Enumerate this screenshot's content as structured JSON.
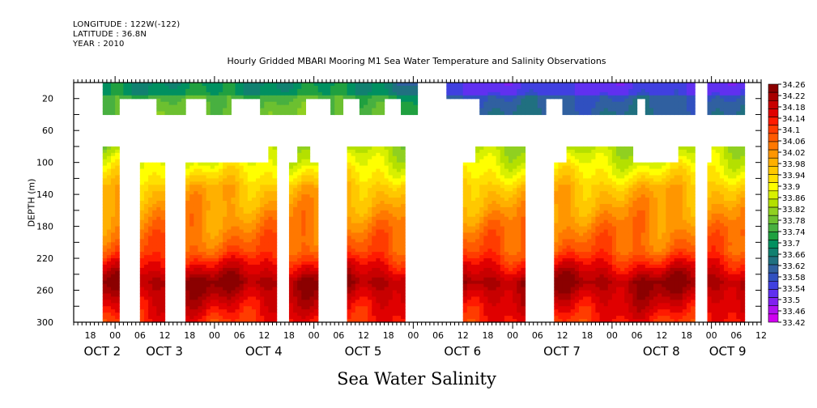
{
  "header": {
    "longitude": "LONGITUDE : 122W(-122)",
    "latitude": "LATITUDE : 36.8N",
    "year": "YEAR : 2010"
  },
  "chart_data": {
    "type": "heatmap",
    "title": "Hourly Gridded MBARI Mooring M1 Sea Water Temperature and Salinity Observations",
    "xlabel": "Sea Water Salinity",
    "ylabel": "DEPTH (m)",
    "x_range_hours": [
      0,
      162
    ],
    "x_start": "OCT 1 14:00",
    "ylim": [
      300,
      0
    ],
    "y_ticks": [
      20,
      60,
      100,
      140,
      180,
      220,
      260,
      300
    ],
    "x_ticks": [
      {
        "hour": 4,
        "label": "18"
      },
      {
        "hour": 10,
        "label": "00"
      },
      {
        "hour": 16,
        "label": "06"
      },
      {
        "hour": 22,
        "label": "12"
      },
      {
        "hour": 28,
        "label": "18"
      },
      {
        "hour": 34,
        "label": "00"
      },
      {
        "hour": 40,
        "label": "06"
      },
      {
        "hour": 46,
        "label": "12"
      },
      {
        "hour": 52,
        "label": "18"
      },
      {
        "hour": 58,
        "label": "00"
      },
      {
        "hour": 64,
        "label": "06"
      },
      {
        "hour": 70,
        "label": "12"
      },
      {
        "hour": 76,
        "label": "18"
      },
      {
        "hour": 82,
        "label": "00"
      },
      {
        "hour": 88,
        "label": "06"
      },
      {
        "hour": 94,
        "label": "12"
      },
      {
        "hour": 100,
        "label": "18"
      },
      {
        "hour": 106,
        "label": "00"
      },
      {
        "hour": 112,
        "label": "06"
      },
      {
        "hour": 118,
        "label": "12"
      },
      {
        "hour": 124,
        "label": "18"
      },
      {
        "hour": 130,
        "label": "00"
      },
      {
        "hour": 136,
        "label": "06"
      },
      {
        "hour": 142,
        "label": "12"
      },
      {
        "hour": 148,
        "label": "18"
      },
      {
        "hour": 154,
        "label": "00"
      },
      {
        "hour": 160,
        "label": "06"
      },
      {
        "hour": 166,
        "label": "12"
      }
    ],
    "day_labels": [
      {
        "hour": 4,
        "label": "OCT  2"
      },
      {
        "hour": 19,
        "label": "OCT  3"
      },
      {
        "hour": 43,
        "label": "OCT  4"
      },
      {
        "hour": 67,
        "label": "OCT  5"
      },
      {
        "hour": 91,
        "label": "OCT  6"
      },
      {
        "hour": 115,
        "label": "OCT  7"
      },
      {
        "hour": 139,
        "label": "OCT  8"
      },
      {
        "hour": 155,
        "label": "OCT  9"
      }
    ],
    "colorbar": {
      "levels": [
        34.26,
        34.22,
        34.18,
        34.14,
        34.1,
        34.06,
        34.02,
        33.98,
        33.94,
        33.9,
        33.86,
        33.82,
        33.78,
        33.74,
        33.7,
        33.66,
        33.62,
        33.58,
        33.54,
        33.5,
        33.46,
        33.42
      ],
      "colors": [
        "#8b0000",
        "#a80000",
        "#c80000",
        "#e00000",
        "#ff1a00",
        "#ff3c00",
        "#ff5a00",
        "#ff7800",
        "#ff9600",
        "#ffb000",
        "#ffc800",
        "#ffe000",
        "#ffff00",
        "#d8f000",
        "#b4e000",
        "#90d020",
        "#6cc030",
        "#48b040",
        "#20a040",
        "#009060",
        "#108070",
        "#207080",
        "#3060a0",
        "#3050c0",
        "#4040e0",
        "#6030f0",
        "#8020f0",
        "#b010f0",
        "#d000f0"
      ]
    },
    "surface_segments_hours": [
      {
        "start": 7,
        "end": 83,
        "depth_bottom": 40,
        "notches": [
          [
            11,
            20
          ],
          [
            27,
            32
          ],
          [
            38,
            45
          ],
          [
            56,
            62
          ],
          [
            65,
            69
          ],
          [
            75,
            79
          ]
        ]
      },
      {
        "start": 90,
        "end": 150,
        "depth_bottom": 40,
        "notches": [
          [
            90,
            98
          ],
          [
            114,
            118
          ],
          [
            136,
            138
          ]
        ]
      },
      {
        "start": 153,
        "end": 162,
        "depth_bottom": 40,
        "notches": []
      }
    ],
    "deep_segments_hours": [
      {
        "start": 7,
        "end": 11,
        "depth_top": 80
      },
      {
        "start": 16,
        "end": 22,
        "depth_top": 100
      },
      {
        "start": 27,
        "end": 49,
        "depth_top": 100,
        "step": {
          "start": 47,
          "end": 49,
          "depth_top": 80
        }
      },
      {
        "start": 52,
        "end": 59,
        "depth_top": 100,
        "step": {
          "start": 54,
          "end": 57,
          "depth_top": 80
        }
      },
      {
        "start": 66,
        "end": 80,
        "depth_top": 80
      },
      {
        "start": 94,
        "end": 109,
        "depth_top": 100,
        "step": {
          "start": 97,
          "end": 109,
          "depth_top": 80
        }
      },
      {
        "start": 116,
        "end": 146,
        "depth_top": 100,
        "step": {
          "start": 119,
          "end": 135,
          "depth_top": 80
        }
      },
      {
        "start": 140,
        "end": 150,
        "depth_top": 100,
        "step": {
          "start": 146,
          "end": 150,
          "depth_top": 80
        }
      },
      {
        "start": 153,
        "end": 162,
        "depth_top": 100,
        "step": {
          "start": 154,
          "end": 162,
          "depth_top": 80
        }
      }
    ],
    "profile_note": "Surface (0-40 m) ~33.5-33.8 PSU (fresher, bluer after Oct 6); 80-120 m ~33.8-33.95; 140-200 m ~34.0-34.06; max ~34.22-34.26 at ~250 m; ~34.14 at 300 m"
  }
}
